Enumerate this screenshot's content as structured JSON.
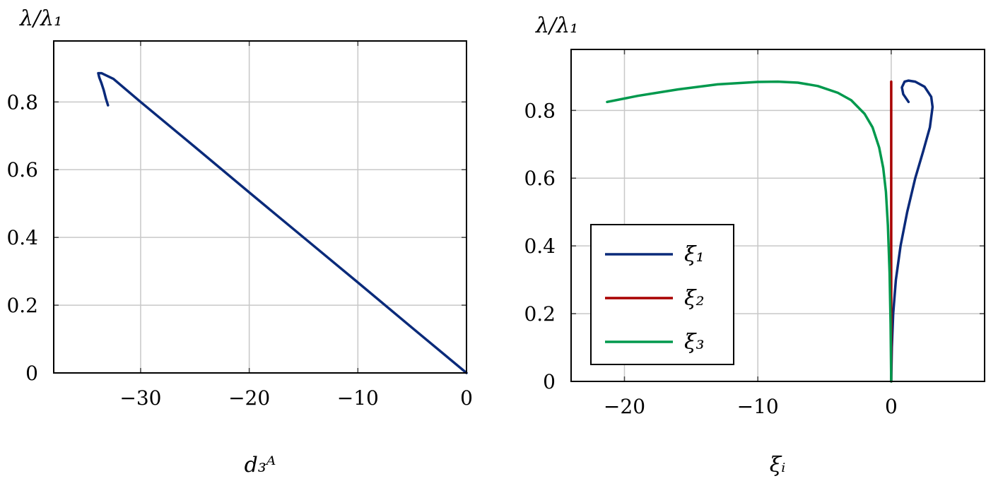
{
  "chart_data": [
    {
      "type": "line",
      "title": "",
      "ylabel": "λ/λ₁",
      "xlabel": "d₃ᴬ",
      "xlim": [
        -38,
        0
      ],
      "ylim": [
        0,
        0.98
      ],
      "xticks": [
        -30,
        -20,
        -10,
        0
      ],
      "xtick_labels": [
        "−30",
        "−20",
        "−10",
        "0"
      ],
      "yticks": [
        0,
        0.2,
        0.4,
        0.6,
        0.8
      ],
      "ytick_labels": [
        "0",
        "0.2",
        "0.4",
        "0.6",
        "0.8"
      ],
      "grid": true,
      "legend": null,
      "series": [
        {
          "color": "#0a2a7a",
          "x": [
            -33.0,
            -33.2,
            -33.4,
            -33.6,
            -33.8,
            -33.9,
            -33.6,
            -32.5,
            -30,
            -25,
            -20,
            -15,
            -10,
            -5,
            0
          ],
          "y": [
            0.79,
            0.81,
            0.835,
            0.855,
            0.872,
            0.885,
            0.885,
            0.868,
            0.8,
            0.667,
            0.533,
            0.4,
            0.267,
            0.133,
            0.0
          ]
        }
      ]
    },
    {
      "type": "line",
      "title": "",
      "ylabel": "λ/λ₁",
      "xlabel": "ξᵢ",
      "xlim": [
        -24,
        7
      ],
      "ylim": [
        0,
        0.98
      ],
      "xticks": [
        -20,
        -10,
        0
      ],
      "xtick_labels": [
        "−20",
        "−10",
        "0"
      ],
      "yticks": [
        0,
        0.2,
        0.4,
        0.6,
        0.8
      ],
      "ytick_labels": [
        "0",
        "0.2",
        "0.4",
        "0.6",
        "0.8"
      ],
      "grid": true,
      "legend": "lower-left",
      "series": [
        {
          "name": "ξ₁",
          "color": "#0a2a7a",
          "x": [
            0.0,
            0.05,
            0.15,
            0.35,
            0.7,
            1.2,
            1.8,
            2.4,
            2.9,
            3.1,
            3.0,
            2.5,
            1.8,
            1.3,
            1.0,
            0.8,
            0.9,
            1.3
          ],
          "y": [
            0.0,
            0.1,
            0.2,
            0.3,
            0.4,
            0.5,
            0.6,
            0.68,
            0.75,
            0.81,
            0.84,
            0.87,
            0.885,
            0.888,
            0.885,
            0.868,
            0.848,
            0.825
          ]
        },
        {
          "name": "ξ₂",
          "color": "#a80000",
          "x": [
            0.0,
            0.0
          ],
          "y": [
            0.0,
            0.885
          ]
        },
        {
          "name": "ξ₃",
          "color": "#00994d",
          "x": [
            -21.3,
            -19,
            -16,
            -13,
            -10,
            -8.5,
            -7,
            -5.5,
            -4,
            -3,
            -2,
            -1.4,
            -0.9,
            -0.6,
            -0.4,
            -0.25,
            -0.12,
            -0.05,
            0.0
          ],
          "y": [
            0.825,
            0.843,
            0.862,
            0.877,
            0.884,
            0.885,
            0.882,
            0.872,
            0.852,
            0.83,
            0.79,
            0.75,
            0.69,
            0.63,
            0.56,
            0.46,
            0.32,
            0.17,
            0.0
          ]
        }
      ]
    }
  ]
}
